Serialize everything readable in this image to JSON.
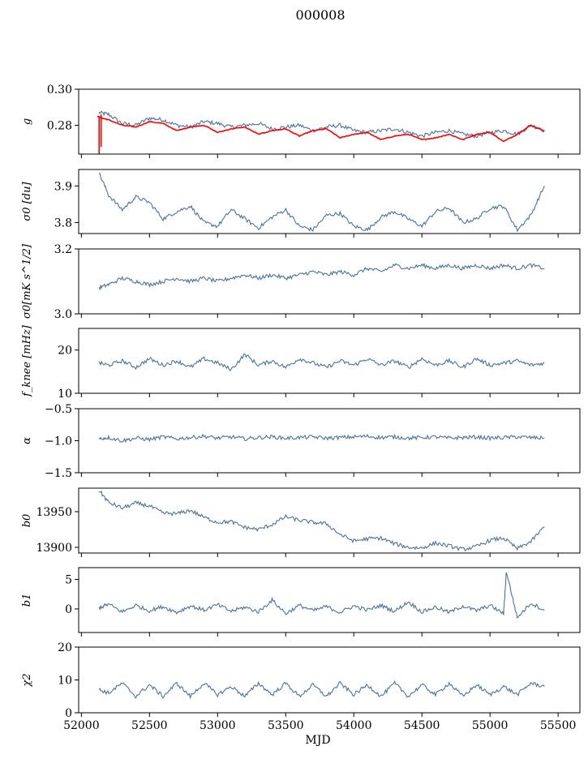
{
  "figure_title": "000008",
  "colors": {
    "series": "#4c72a0",
    "overlay": "#ff0000",
    "axes": "#000000"
  },
  "chart_data": [
    {
      "type": "line",
      "ylabel": "g",
      "ylim": [
        0.264,
        0.3
      ],
      "yticks": [
        0.28,
        0.3
      ],
      "ytick_labels": [
        "0.28",
        "0.30"
      ],
      "xlim": [
        51980,
        55660
      ],
      "series": [
        {
          "color": "#4c72a0",
          "x": [
            52130,
            52200,
            52300,
            52400,
            52500,
            52600,
            52700,
            52800,
            52900,
            53000,
            53100,
            53200,
            53300,
            53400,
            53500,
            53600,
            53700,
            53800,
            53900,
            54000,
            54100,
            54200,
            54300,
            54400,
            54500,
            54600,
            54700,
            54800,
            54900,
            55000,
            55100,
            55200,
            55300,
            55400
          ],
          "y": [
            0.287,
            0.286,
            0.281,
            0.28,
            0.284,
            0.283,
            0.28,
            0.279,
            0.282,
            0.281,
            0.279,
            0.28,
            0.281,
            0.278,
            0.279,
            0.28,
            0.277,
            0.279,
            0.28,
            0.277,
            0.276,
            0.277,
            0.278,
            0.276,
            0.274,
            0.276,
            0.277,
            0.275,
            0.274,
            0.276,
            0.277,
            0.275,
            0.28,
            0.277
          ]
        },
        {
          "color": "#ff0000",
          "x": [
            52120,
            52150,
            52200,
            52300,
            52400,
            52500,
            52600,
            52700,
            52800,
            52900,
            53000,
            53100,
            53200,
            53300,
            53400,
            53500,
            53600,
            53700,
            53800,
            53900,
            54000,
            54100,
            54200,
            54300,
            54400,
            54500,
            54600,
            54700,
            54800,
            54900,
            55000,
            55100,
            55200,
            55300,
            55400
          ],
          "y": [
            0.285,
            0.284,
            0.283,
            0.28,
            0.279,
            0.282,
            0.281,
            0.277,
            0.279,
            0.28,
            0.276,
            0.278,
            0.279,
            0.275,
            0.277,
            0.278,
            0.274,
            0.277,
            0.278,
            0.273,
            0.275,
            0.276,
            0.272,
            0.274,
            0.275,
            0.272,
            0.273,
            0.275,
            0.272,
            0.275,
            0.276,
            0.271,
            0.275,
            0.28,
            0.277
          ]
        }
      ]
    },
    {
      "type": "line",
      "ylabel": "σ0 [du]",
      "ylim": [
        3.77,
        3.945
      ],
      "yticks": [
        3.8,
        3.9
      ],
      "ytick_labels": [
        "3.8",
        "3.9"
      ],
      "xlim": [
        51980,
        55660
      ],
      "series": [
        {
          "color": "#4c72a0",
          "x": [
            52130,
            52200,
            52300,
            52400,
            52500,
            52600,
            52700,
            52800,
            52900,
            53000,
            53100,
            53200,
            53300,
            53400,
            53500,
            53600,
            53700,
            53800,
            53900,
            54000,
            54100,
            54200,
            54300,
            54400,
            54500,
            54600,
            54700,
            54800,
            54900,
            55000,
            55100,
            55200,
            55300,
            55400
          ],
          "y": [
            3.935,
            3.875,
            3.835,
            3.87,
            3.855,
            3.81,
            3.83,
            3.845,
            3.8,
            3.79,
            3.835,
            3.81,
            3.785,
            3.815,
            3.835,
            3.79,
            3.78,
            3.82,
            3.825,
            3.79,
            3.78,
            3.815,
            3.83,
            3.81,
            3.79,
            3.83,
            3.84,
            3.8,
            3.81,
            3.84,
            3.845,
            3.78,
            3.82,
            3.9
          ]
        }
      ]
    },
    {
      "type": "line",
      "ylabel": "σ0[mK s^1/2]",
      "ylim": [
        3.0,
        3.2
      ],
      "yticks": [
        3.0,
        3.2
      ],
      "ytick_labels": [
        "3.0",
        "3.2"
      ],
      "xlim": [
        51980,
        55660
      ],
      "series": [
        {
          "color": "#4c72a0",
          "x": [
            52130,
            52200,
            52300,
            52400,
            52500,
            52600,
            52700,
            52800,
            52900,
            53000,
            53100,
            53200,
            53300,
            53400,
            53500,
            53600,
            53700,
            53800,
            53900,
            54000,
            54100,
            54200,
            54300,
            54400,
            54500,
            54600,
            54700,
            54800,
            54900,
            55000,
            55100,
            55200,
            55300,
            55400
          ],
          "y": [
            3.08,
            3.09,
            3.11,
            3.1,
            3.09,
            3.1,
            3.11,
            3.1,
            3.11,
            3.1,
            3.11,
            3.12,
            3.11,
            3.12,
            3.11,
            3.12,
            3.13,
            3.12,
            3.13,
            3.12,
            3.14,
            3.13,
            3.15,
            3.14,
            3.15,
            3.14,
            3.15,
            3.14,
            3.15,
            3.14,
            3.15,
            3.14,
            3.15,
            3.14
          ]
        }
      ]
    },
    {
      "type": "line",
      "ylabel": "f_knee [mHz]",
      "ylim": [
        10,
        25
      ],
      "yticks": [
        10,
        20
      ],
      "ytick_labels": [
        "10",
        "20"
      ],
      "xlim": [
        51980,
        55660
      ],
      "series": [
        {
          "color": "#4c72a0",
          "x": [
            52130,
            52200,
            52300,
            52400,
            52500,
            52600,
            52700,
            52800,
            52900,
            53000,
            53100,
            53200,
            53300,
            53400,
            53500,
            53600,
            53700,
            53800,
            53900,
            54000,
            54100,
            54200,
            54300,
            54400,
            54500,
            54600,
            54700,
            54800,
            54900,
            55000,
            55100,
            55200,
            55300,
            55400
          ],
          "y": [
            17,
            16.5,
            17.5,
            16,
            18,
            16.5,
            17.5,
            16,
            18,
            17,
            15.5,
            19,
            16.5,
            17.5,
            16,
            18,
            17,
            16,
            17.5,
            16.5,
            18,
            16.5,
            17.5,
            16,
            18,
            16.5,
            17.5,
            16,
            18,
            16.5,
            17,
            17.5,
            16.5,
            17
          ]
        }
      ]
    },
    {
      "type": "line",
      "ylabel": "α",
      "ylim": [
        -1.5,
        -0.5
      ],
      "yticks": [
        -1.5,
        -1.0,
        -0.5
      ],
      "ytick_labels": [
        "−1.5",
        "−1.0",
        "−0.5"
      ],
      "xlim": [
        51980,
        55660
      ],
      "series": [
        {
          "color": "#4c72a0",
          "x": [
            52130,
            52200,
            52300,
            52400,
            52500,
            52600,
            52700,
            52800,
            52900,
            53000,
            53100,
            53200,
            53300,
            53400,
            53500,
            53600,
            53700,
            53800,
            53900,
            54000,
            54100,
            54200,
            54300,
            54400,
            54500,
            54600,
            54700,
            54800,
            54900,
            55000,
            55100,
            55200,
            55300,
            55400
          ],
          "y": [
            -0.97,
            -0.95,
            -1.0,
            -0.96,
            -0.98,
            -0.94,
            -0.97,
            -0.95,
            -0.93,
            -0.96,
            -0.94,
            -0.97,
            -0.95,
            -0.94,
            -0.96,
            -0.95,
            -0.94,
            -0.96,
            -0.95,
            -0.94,
            -0.93,
            -0.95,
            -0.94,
            -0.96,
            -0.95,
            -0.94,
            -0.96,
            -0.95,
            -0.94,
            -0.96,
            -0.95,
            -0.94,
            -0.95,
            -0.96
          ]
        }
      ]
    },
    {
      "type": "line",
      "ylabel": "b0",
      "ylim": [
        13892,
        13983
      ],
      "yticks": [
        13900,
        13950
      ],
      "ytick_labels": [
        "13900",
        "13950"
      ],
      "xlim": [
        51980,
        55660
      ],
      "series": [
        {
          "color": "#4c72a0",
          "x": [
            52130,
            52200,
            52300,
            52400,
            52500,
            52600,
            52700,
            52800,
            52900,
            53000,
            53100,
            53200,
            53300,
            53400,
            53500,
            53600,
            53700,
            53800,
            53900,
            54000,
            54100,
            54200,
            54300,
            54400,
            54500,
            54600,
            54700,
            54800,
            54900,
            55000,
            55100,
            55200,
            55300,
            55400
          ],
          "y": [
            13980,
            13963,
            13955,
            13962,
            13958,
            13948,
            13947,
            13952,
            13942,
            13935,
            13936,
            13928,
            13925,
            13932,
            13943,
            13938,
            13935,
            13933,
            13918,
            13909,
            13912,
            13913,
            13905,
            13900,
            13899,
            13906,
            13902,
            13897,
            13901,
            13910,
            13913,
            13898,
            13908,
            13929
          ]
        }
      ]
    },
    {
      "type": "line",
      "ylabel": "b1",
      "ylim": [
        -4,
        7
      ],
      "yticks": [
        0,
        5
      ],
      "ytick_labels": [
        "0",
        "5"
      ],
      "xlim": [
        51980,
        55660
      ],
      "series": [
        {
          "color": "#4c72a0",
          "x": [
            52130,
            52200,
            52300,
            52400,
            52500,
            52600,
            52700,
            52800,
            52900,
            53000,
            53100,
            53200,
            53300,
            53400,
            53500,
            53600,
            53700,
            53800,
            53900,
            54000,
            54100,
            54200,
            54300,
            54400,
            54500,
            54600,
            54700,
            54800,
            54900,
            55000,
            55100,
            55120,
            55200,
            55300,
            55400
          ],
          "y": [
            0.2,
            0.8,
            -0.5,
            0.6,
            -0.3,
            0.4,
            -0.6,
            0.5,
            -0.2,
            0.7,
            -0.4,
            0.3,
            -0.5,
            1.5,
            -0.8,
            0.6,
            -0.3,
            0.4,
            -0.6,
            0.5,
            -0.2,
            0.6,
            -0.4,
            1.2,
            -0.5,
            0.3,
            -0.6,
            0.5,
            -0.3,
            0.6,
            -0.8,
            6.4,
            -1.5,
            1.0,
            -0.2
          ]
        }
      ]
    },
    {
      "type": "line",
      "ylabel": "χ2",
      "ylim": [
        0,
        20
      ],
      "yticks": [
        0,
        10,
        20
      ],
      "ytick_labels": [
        "0",
        "10",
        "20"
      ],
      "xlim": [
        51980,
        55660
      ],
      "xticks": [
        52000,
        52500,
        53000,
        53500,
        54000,
        54500,
        55000,
        55500
      ],
      "xtick_labels": [
        "52000",
        "52500",
        "53000",
        "53500",
        "54000",
        "54500",
        "55000",
        "55500"
      ],
      "xlabel": "MJD",
      "series": [
        {
          "color": "#4c72a0",
          "x": [
            52130,
            52200,
            52300,
            52400,
            52500,
            52600,
            52700,
            52800,
            52900,
            53000,
            53100,
            53200,
            53300,
            53400,
            53500,
            53600,
            53700,
            53800,
            53900,
            54000,
            54100,
            54200,
            54300,
            54400,
            54500,
            54600,
            54700,
            54800,
            54900,
            55000,
            55100,
            55200,
            55300,
            55400
          ],
          "y": [
            7,
            6,
            9,
            5,
            8.5,
            5,
            9,
            5,
            9,
            5.5,
            8,
            5,
            9,
            5.5,
            9,
            5,
            8.5,
            5,
            9,
            5.5,
            8.5,
            5,
            9,
            5,
            8.5,
            5.5,
            9,
            5,
            8.5,
            5.5,
            8,
            5.5,
            9,
            8
          ]
        }
      ]
    }
  ]
}
